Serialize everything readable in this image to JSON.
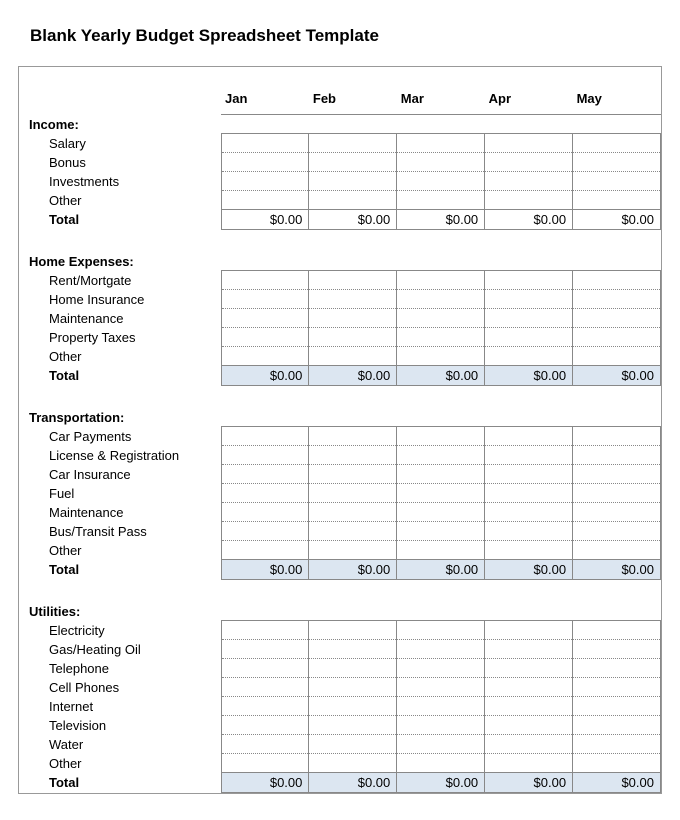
{
  "title": "Blank Yearly Budget Spreadsheet Template",
  "months": [
    "Jan",
    "Feb",
    "Mar",
    "Apr",
    "May"
  ],
  "colors": {
    "shaded_total_bg": "#dce6f1",
    "border": "#888888",
    "text": "#000000",
    "background": "#ffffff"
  },
  "typography": {
    "title_fontsize": 17,
    "body_fontsize": 13,
    "font_family": "Arial"
  },
  "sections": [
    {
      "name": "Income:",
      "items": [
        "Salary",
        "Bonus",
        "Investments",
        "Other"
      ],
      "total_label": "Total",
      "totals": [
        "$0.00",
        "$0.00",
        "$0.00",
        "$0.00",
        "$0.00"
      ],
      "total_shaded": false
    },
    {
      "name": "Home Expenses:",
      "items": [
        "Rent/Mortgate",
        "Home Insurance",
        "Maintenance",
        "Property Taxes",
        "Other"
      ],
      "total_label": "Total",
      "totals": [
        "$0.00",
        "$0.00",
        "$0.00",
        "$0.00",
        "$0.00"
      ],
      "total_shaded": true
    },
    {
      "name": "Transportation:",
      "items": [
        "Car Payments",
        "License & Registration",
        "Car Insurance",
        "Fuel",
        "Maintenance",
        "Bus/Transit Pass",
        "Other"
      ],
      "total_label": "Total",
      "totals": [
        "$0.00",
        "$0.00",
        "$0.00",
        "$0.00",
        "$0.00"
      ],
      "total_shaded": true
    },
    {
      "name": "Utilities:",
      "items": [
        "Electricity",
        "Gas/Heating Oil",
        "Telephone",
        "Cell Phones",
        "Internet",
        "Television",
        "Water",
        "Other"
      ],
      "total_label": "Total",
      "totals": [
        "$0.00",
        "$0.00",
        "$0.00",
        "$0.00",
        "$0.00"
      ],
      "total_shaded": true
    }
  ]
}
